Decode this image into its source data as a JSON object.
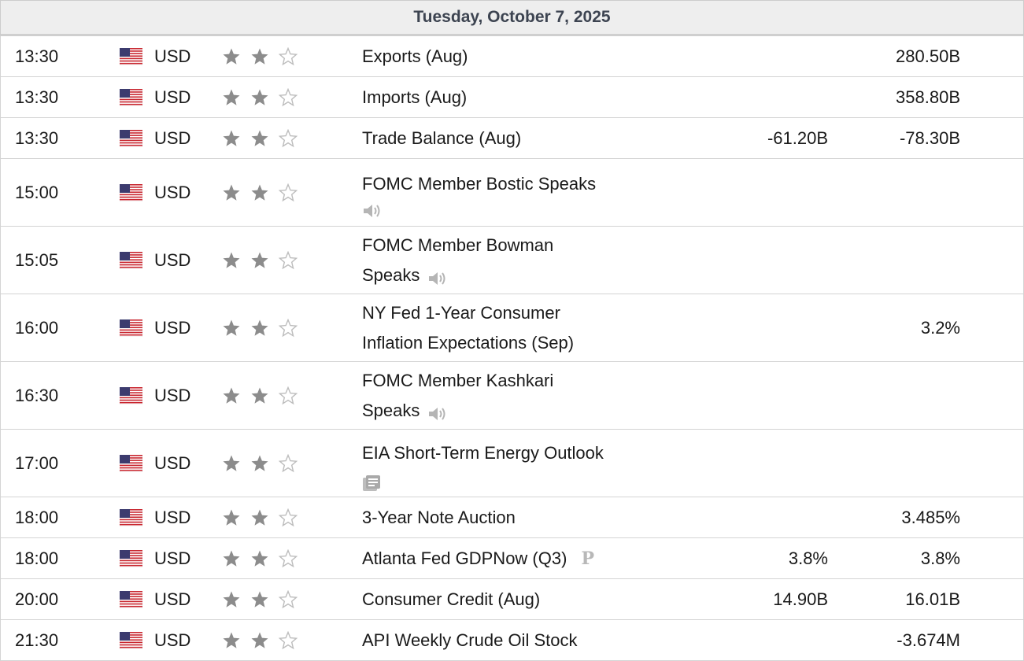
{
  "date_header": "Tuesday, October 7, 2025",
  "colors": {
    "star_filled": "#8c8c8c",
    "star_empty": "#bdbdbd",
    "flag_red": "#c8262f",
    "flag_blue": "#3c3b6e"
  },
  "events": [
    {
      "time": "13:30",
      "currency": "USD",
      "importance": 2,
      "event": "Exports (Aug)",
      "event_line2": "",
      "icon": "",
      "forecast": "",
      "previous": "280.50B"
    },
    {
      "time": "13:30",
      "currency": "USD",
      "importance": 2,
      "event": "Imports (Aug)",
      "event_line2": "",
      "icon": "",
      "forecast": "",
      "previous": "358.80B"
    },
    {
      "time": "13:30",
      "currency": "USD",
      "importance": 2,
      "event": "Trade Balance (Aug)",
      "event_line2": "",
      "icon": "",
      "forecast": "-61.20B",
      "previous": "-78.30B"
    },
    {
      "time": "15:00",
      "currency": "USD",
      "importance": 2,
      "event": "FOMC Member Bostic Speaks",
      "event_line2": "",
      "icon": "speaker-icon-line2",
      "forecast": "",
      "previous": ""
    },
    {
      "time": "15:05",
      "currency": "USD",
      "importance": 2,
      "event": "FOMC Member Bowman",
      "event_line2": "Speaks",
      "icon": "speaker-icon",
      "forecast": "",
      "previous": ""
    },
    {
      "time": "16:00",
      "currency": "USD",
      "importance": 2,
      "event": "NY Fed 1-Year Consumer",
      "event_line2": "Inflation Expectations (Sep)",
      "icon": "",
      "forecast": "",
      "previous": "3.2%"
    },
    {
      "time": "16:30",
      "currency": "USD",
      "importance": 2,
      "event": "FOMC Member Kashkari",
      "event_line2": "Speaks",
      "icon": "speaker-icon",
      "forecast": "",
      "previous": ""
    },
    {
      "time": "17:00",
      "currency": "USD",
      "importance": 2,
      "event": "EIA Short-Term Energy Outlook",
      "event_line2": "",
      "icon": "report-icon-line2",
      "forecast": "",
      "previous": ""
    },
    {
      "time": "18:00",
      "currency": "USD",
      "importance": 2,
      "event": "3-Year Note Auction",
      "event_line2": "",
      "icon": "",
      "forecast": "",
      "previous": "3.485%"
    },
    {
      "time": "18:00",
      "currency": "USD",
      "importance": 2,
      "event": "Atlanta Fed GDPNow (Q3)",
      "event_line2": "",
      "icon": "preliminary-icon",
      "icon_text": "P",
      "forecast": "3.8%",
      "previous": "3.8%"
    },
    {
      "time": "20:00",
      "currency": "USD",
      "importance": 2,
      "event": "Consumer Credit (Aug)",
      "event_line2": "",
      "icon": "",
      "forecast": "14.90B",
      "previous": "16.01B"
    },
    {
      "time": "21:30",
      "currency": "USD",
      "importance": 2,
      "event": "API Weekly Crude Oil Stock",
      "event_line2": "",
      "icon": "",
      "forecast": "",
      "previous": "-3.674M"
    }
  ]
}
